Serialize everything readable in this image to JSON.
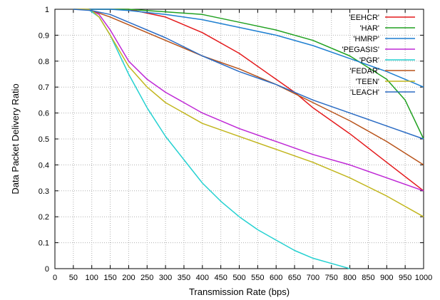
{
  "chart_data": {
    "type": "line",
    "title": "",
    "xlabel": "Transmission Rate (bps)",
    "ylabel": "Data Packet Delivery Ratio",
    "xlim": [
      0,
      1000
    ],
    "ylim": [
      0,
      1
    ],
    "x_ticks": [
      0,
      50,
      100,
      150,
      200,
      250,
      300,
      350,
      400,
      450,
      500,
      550,
      600,
      650,
      700,
      750,
      800,
      850,
      900,
      950,
      1000
    ],
    "y_ticks": [
      0,
      0.1,
      0.2,
      0.3,
      0.4,
      0.5,
      0.6,
      0.7,
      0.8,
      0.9,
      1
    ],
    "grid": true,
    "legend_position": "top-right",
    "series": [
      {
        "name": "'EEHCR'",
        "color": "#e41a1c",
        "points": [
          [
            50,
            1
          ],
          [
            100,
            1
          ],
          [
            200,
            1
          ],
          [
            300,
            0.97
          ],
          [
            400,
            0.91
          ],
          [
            500,
            0.83
          ],
          [
            600,
            0.73
          ],
          [
            650,
            0.68
          ],
          [
            700,
            0.62
          ],
          [
            800,
            0.52
          ],
          [
            900,
            0.41
          ],
          [
            1000,
            0.3
          ]
        ]
      },
      {
        "name": "'HAR'",
        "color": "#21a121",
        "points": [
          [
            50,
            1
          ],
          [
            150,
            1
          ],
          [
            200,
            1
          ],
          [
            300,
            0.99
          ],
          [
            400,
            0.98
          ],
          [
            500,
            0.95
          ],
          [
            600,
            0.92
          ],
          [
            700,
            0.88
          ],
          [
            800,
            0.82
          ],
          [
            900,
            0.73
          ],
          [
            950,
            0.65
          ],
          [
            1000,
            0.5
          ]
        ]
      },
      {
        "name": "'HMRP'",
        "color": "#1e7fd1",
        "points": [
          [
            50,
            1
          ],
          [
            150,
            1
          ],
          [
            200,
            0.995
          ],
          [
            300,
            0.98
          ],
          [
            400,
            0.96
          ],
          [
            500,
            0.93
          ],
          [
            600,
            0.9
          ],
          [
            700,
            0.86
          ],
          [
            800,
            0.81
          ],
          [
            900,
            0.76
          ],
          [
            1000,
            0.7
          ]
        ]
      },
      {
        "name": "'PEGASIS'",
        "color": "#bf28d6",
        "points": [
          [
            50,
            1
          ],
          [
            90,
            1
          ],
          [
            100,
            0.995
          ],
          [
            120,
            0.98
          ],
          [
            150,
            0.92
          ],
          [
            200,
            0.8
          ],
          [
            250,
            0.73
          ],
          [
            300,
            0.68
          ],
          [
            400,
            0.6
          ],
          [
            500,
            0.54
          ],
          [
            600,
            0.49
          ],
          [
            700,
            0.44
          ],
          [
            800,
            0.4
          ],
          [
            900,
            0.35
          ],
          [
            1000,
            0.3
          ]
        ]
      },
      {
        "name": "'PGR'",
        "color": "#24d1d1",
        "points": [
          [
            50,
            1
          ],
          [
            90,
            1
          ],
          [
            100,
            0.99
          ],
          [
            120,
            0.97
          ],
          [
            150,
            0.9
          ],
          [
            200,
            0.75
          ],
          [
            250,
            0.62
          ],
          [
            300,
            0.51
          ],
          [
            350,
            0.42
          ],
          [
            400,
            0.33
          ],
          [
            450,
            0.26
          ],
          [
            500,
            0.2
          ],
          [
            550,
            0.15
          ],
          [
            600,
            0.11
          ],
          [
            650,
            0.07
          ],
          [
            700,
            0.04
          ],
          [
            750,
            0.02
          ],
          [
            800,
            0
          ]
        ]
      },
      {
        "name": "'FEDAR'",
        "color": "#b8531a",
        "points": [
          [
            50,
            1
          ],
          [
            80,
            1
          ],
          [
            100,
            0.995
          ],
          [
            150,
            0.97
          ],
          [
            200,
            0.94
          ],
          [
            300,
            0.88
          ],
          [
            400,
            0.82
          ],
          [
            500,
            0.77
          ],
          [
            600,
            0.71
          ],
          [
            700,
            0.64
          ],
          [
            800,
            0.57
          ],
          [
            900,
            0.49
          ],
          [
            1000,
            0.4
          ]
        ]
      },
      {
        "name": "'TEEN'",
        "color": "#c2b61e",
        "points": [
          [
            50,
            1
          ],
          [
            90,
            1
          ],
          [
            100,
            0.995
          ],
          [
            120,
            0.97
          ],
          [
            150,
            0.9
          ],
          [
            200,
            0.78
          ],
          [
            250,
            0.7
          ],
          [
            300,
            0.64
          ],
          [
            400,
            0.56
          ],
          [
            500,
            0.51
          ],
          [
            600,
            0.46
          ],
          [
            700,
            0.41
          ],
          [
            800,
            0.35
          ],
          [
            900,
            0.28
          ],
          [
            1000,
            0.2
          ]
        ]
      },
      {
        "name": "'LEACH'",
        "color": "#2b6cc4",
        "points": [
          [
            50,
            1
          ],
          [
            100,
            0.995
          ],
          [
            150,
            0.98
          ],
          [
            200,
            0.95
          ],
          [
            300,
            0.89
          ],
          [
            400,
            0.82
          ],
          [
            500,
            0.76
          ],
          [
            600,
            0.71
          ],
          [
            700,
            0.65
          ],
          [
            800,
            0.6
          ],
          [
            900,
            0.55
          ],
          [
            1000,
            0.5
          ]
        ]
      }
    ]
  }
}
